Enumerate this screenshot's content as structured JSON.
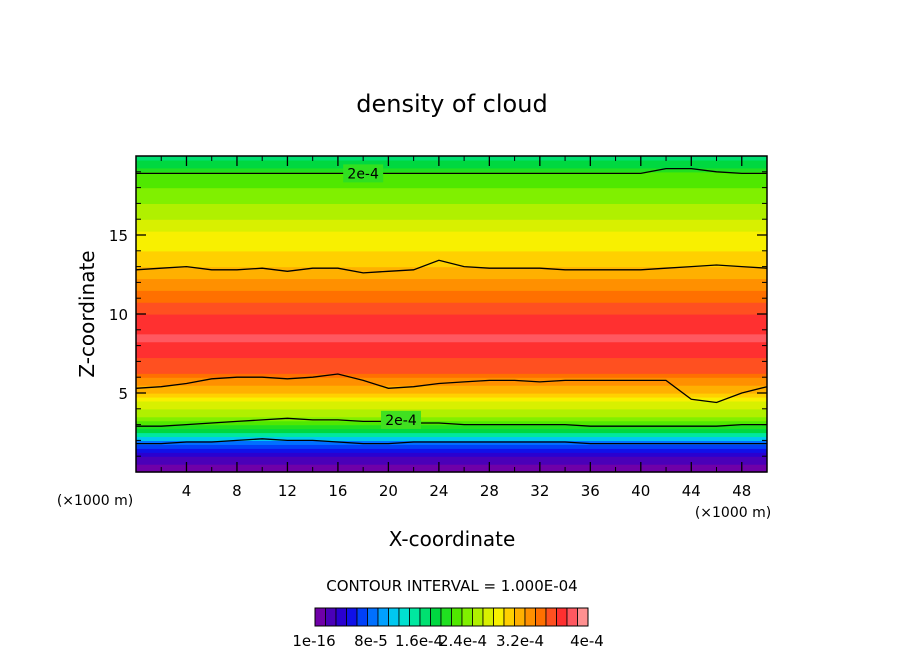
{
  "chart_data": {
    "type": "heatmap",
    "title": "density of cloud",
    "xlabel": "X-coordinate",
    "ylabel": "Z-coordinate",
    "x_unit_left": "(×1000 m)",
    "x_unit_right": "(×1000 m)",
    "xlim": [
      0,
      50
    ],
    "ylim": [
      0,
      20
    ],
    "x_ticks": [
      "4",
      "8",
      "12",
      "16",
      "20",
      "24",
      "28",
      "32",
      "36",
      "40",
      "44",
      "48"
    ],
    "y_ticks": [
      "5",
      "10",
      "15"
    ],
    "contour_interval_label": "CONTOUR INTERVAL = 1.000E-04",
    "contour_labels": [
      "2e-4",
      "2e-4"
    ],
    "colorbar_labels": [
      "1e-16",
      "8e-5",
      "1.6e-4",
      "2.4e-4",
      "3.2e-4",
      "4e-4"
    ],
    "colorbar_levels": 26,
    "colorbar_colors": [
      "#6f00a8",
      "#4a00b8",
      "#2a00d0",
      "#1010e8",
      "#0040f8",
      "#0070ff",
      "#00a0ff",
      "#00c8f0",
      "#00e0d0",
      "#00e8a0",
      "#00e070",
      "#00d840",
      "#20e020",
      "#50e800",
      "#80f000",
      "#b0f000",
      "#d8f000",
      "#f8f000",
      "#ffd000",
      "#ffb000",
      "#ff9000",
      "#ff7000",
      "#ff5020",
      "#ff3030",
      "#ff5860",
      "#ff9090"
    ],
    "profile": [
      {
        "z": 0.3,
        "value": 1e-16
      },
      {
        "z": 0.9,
        "value": 2e-05
      },
      {
        "z": 1.3,
        "value": 4e-05
      },
      {
        "z": 1.8,
        "value": 8e-05
      },
      {
        "z": 2.2,
        "value": 0.00012
      },
      {
        "z": 2.9,
        "value": 0.0002
      },
      {
        "z": 3.5,
        "value": 0.00023
      },
      {
        "z": 4.3,
        "value": 0.00026
      },
      {
        "z": 5.2,
        "value": 0.0003
      },
      {
        "z": 6.5,
        "value": 0.00035
      },
      {
        "z": 8.5,
        "value": 0.00038
      },
      {
        "z": 10.0,
        "value": 0.00036
      },
      {
        "z": 11.5,
        "value": 0.00033
      },
      {
        "z": 12.9,
        "value": 0.0003
      },
      {
        "z": 14.0,
        "value": 0.00028
      },
      {
        "z": 15.5,
        "value": 0.00026
      },
      {
        "z": 17.0,
        "value": 0.00023
      },
      {
        "z": 18.9,
        "value": 0.0002
      },
      {
        "z": 20.0,
        "value": 0.00016
      }
    ],
    "contours": [
      {
        "level": 0.0002,
        "z": [
          2.9,
          2.9,
          3.0,
          3.1,
          3.2,
          3.3,
          3.4,
          3.3,
          3.3,
          3.2,
          3.2,
          3.1,
          3.1,
          3.0,
          3.0,
          3.0,
          3.0,
          3.0,
          2.9,
          2.9,
          2.9,
          2.9,
          2.9,
          2.9,
          3.0,
          3.0
        ]
      },
      {
        "level": 0.0003,
        "z": [
          5.3,
          5.4,
          5.6,
          5.9,
          6.0,
          6.0,
          5.9,
          6.0,
          6.2,
          5.8,
          5.3,
          5.4,
          5.6,
          5.7,
          5.8,
          5.8,
          5.7,
          5.8,
          5.8,
          5.8,
          5.8,
          5.8,
          4.6,
          4.4,
          5.0,
          5.4
        ]
      },
      {
        "level": 0.0003,
        "z": [
          12.8,
          12.9,
          13.0,
          12.8,
          12.8,
          12.9,
          12.7,
          12.9,
          12.9,
          12.6,
          12.7,
          12.8,
          13.4,
          13.0,
          12.9,
          12.9,
          12.9,
          12.8,
          12.8,
          12.8,
          12.8,
          12.9,
          13.0,
          13.1,
          13.0,
          12.9
        ]
      },
      {
        "level": 0.0002,
        "z": [
          18.9,
          18.9,
          18.9,
          18.9,
          18.9,
          18.9,
          18.9,
          18.9,
          18.9,
          18.9,
          18.9,
          18.9,
          18.9,
          18.9,
          18.9,
          18.9,
          18.9,
          18.9,
          18.9,
          18.9,
          18.9,
          19.2,
          19.2,
          19.0,
          18.9,
          18.9
        ]
      },
      {
        "level": 0.0001,
        "z": [
          1.8,
          1.8,
          1.9,
          1.9,
          2.0,
          2.1,
          2.0,
          2.0,
          1.9,
          1.8,
          1.8,
          1.9,
          1.9,
          1.9,
          1.9,
          1.9,
          1.9,
          1.9,
          1.8,
          1.8,
          1.8,
          1.8,
          1.8,
          1.8,
          1.8,
          1.8
        ]
      }
    ]
  }
}
